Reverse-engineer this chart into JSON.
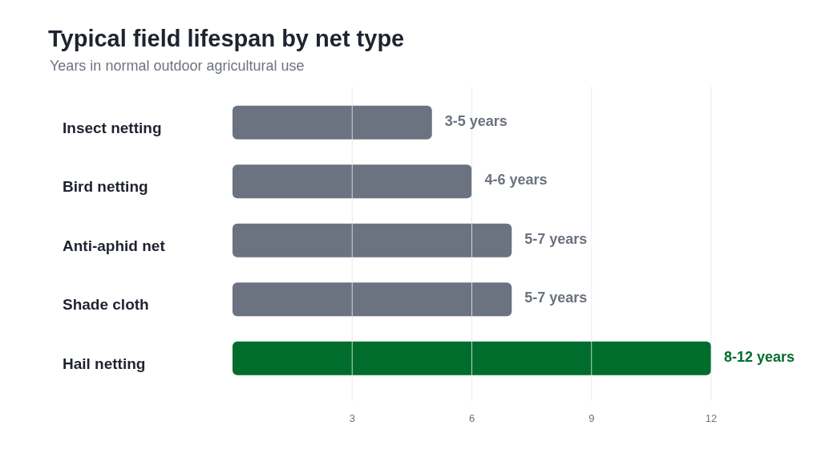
{
  "chart_data": {
    "type": "bar",
    "orientation": "horizontal",
    "title": "Typical field lifespan by net type",
    "subtitle": "Years in normal outdoor agricultural use",
    "categories": [
      "Insect netting",
      "Bird netting",
      "Anti-aphid net",
      "Shade cloth",
      "Hail netting"
    ],
    "values": [
      5,
      6,
      7,
      7,
      12
    ],
    "colors": [
      "#6b7280",
      "#6b7280",
      "#6b7280",
      "#6b7280",
      "#006d2c"
    ],
    "value_labels": [
      "3-5 years",
      "4-6 years",
      "5-7 years",
      "5-7 years",
      "8-12 years"
    ],
    "xlim": [
      0,
      12
    ],
    "xticks": [
      3,
      6,
      9,
      12
    ],
    "grid": "x"
  }
}
